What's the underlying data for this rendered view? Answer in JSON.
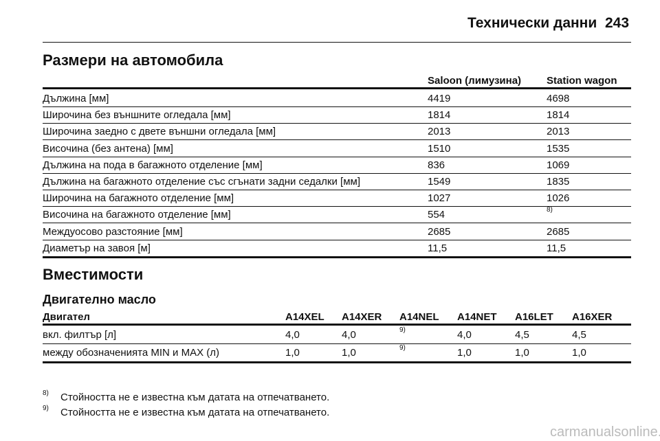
{
  "header": {
    "title": "Технически данни",
    "page": "243"
  },
  "dimensions": {
    "title": "Размери на автомобила",
    "columns": [
      "Saloon (лимузина)",
      "Station wagon"
    ],
    "rows": [
      [
        "Дължина [мм]",
        "4419",
        "4698"
      ],
      [
        "Широчина без външните огледала [мм]",
        "1814",
        "1814"
      ],
      [
        "Широчина заедно с двете външни огледала [мм]",
        "2013",
        "2013"
      ],
      [
        "Височина (без антена) [мм]",
        "1510",
        "1535"
      ],
      [
        "Дължина на пода в багажното отделение [мм]",
        "836",
        "1069"
      ],
      [
        "Дължина на багажното отделение със сгънати задни седалки [мм]",
        "1549",
        "1835"
      ],
      [
        "Широчина на багажното отделение [мм]",
        "1027",
        "1026"
      ],
      [
        "Височина на багажното отделение [мм]",
        "554",
        {
          "sup": "8)"
        }
      ],
      [
        "Междуосово разстояние [мм]",
        "2685",
        "2685"
      ],
      [
        "Диаметър на завоя [м]",
        "11,5",
        "11,5"
      ]
    ]
  },
  "capacities": {
    "title": "Вместимости",
    "subtitle": "Двигателно масло",
    "columns": [
      "Двигател",
      "A14XEL",
      "A14XER",
      "A14NEL",
      "A14NET",
      "A16LET",
      "A16XER"
    ],
    "rows": [
      [
        "вкл. филтър [л]",
        "4,0",
        "4,0",
        {
          "sup": "9)"
        },
        "4,0",
        "4,5",
        "4,5"
      ],
      [
        "между обозначенията MIN и MAX (л)",
        "1,0",
        "1,0",
        {
          "sup": "9)"
        },
        "1,0",
        "1,0",
        "1,0"
      ]
    ]
  },
  "footnotes": [
    {
      "mark": "8)",
      "text": "Стойността не е известна към датата на отпечатването."
    },
    {
      "mark": "9)",
      "text": "Стойността не е известна към датата на отпечатването."
    }
  ],
  "watermark": "carmanualsonline.info"
}
